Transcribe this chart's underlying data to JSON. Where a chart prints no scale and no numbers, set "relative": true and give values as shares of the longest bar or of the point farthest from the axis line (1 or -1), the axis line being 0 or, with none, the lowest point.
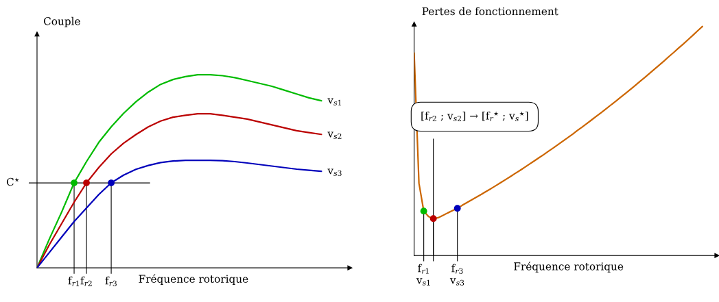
{
  "chart_data": [
    {
      "type": "line",
      "relative": true,
      "ylabel": "Couple",
      "xlabel": "Fréquence rotorique",
      "categories": [
        null,
        null,
        null,
        "f$_{r1}$",
        "f$_{r2}$",
        null,
        "f$_{r3}$",
        null,
        null,
        null,
        null,
        null,
        null,
        null,
        null,
        null,
        null,
        null,
        null,
        null,
        null,
        null,
        null,
        null
      ],
      "series": [
        {
          "name": "v$_{s1}$",
          "color": "#00bb00",
          "values": [
            0,
            0.15,
            0.29,
            0.44,
            0.55,
            0.65,
            0.73,
            0.8,
            0.86,
            0.91,
            0.95,
            0.975,
            0.99,
            1.0,
            1.0,
            0.995,
            0.985,
            0.97,
            0.955,
            0.94,
            0.92,
            0.9,
            0.88,
            0.865
          ]
        },
        {
          "name": "v$_{s2}$",
          "color": "#bb0000",
          "values": [
            0,
            0.12,
            0.23,
            0.34,
            0.44,
            0.52,
            0.59,
            0.645,
            0.69,
            0.73,
            0.76,
            0.78,
            0.79,
            0.798,
            0.798,
            0.79,
            0.78,
            0.77,
            0.755,
            0.74,
            0.725,
            0.71,
            0.7,
            0.691
          ]
        },
        {
          "name": "v$_{s3}$",
          "color": "#0000bb",
          "values": [
            0,
            0.08,
            0.16,
            0.24,
            0.31,
            0.38,
            0.44,
            0.48,
            0.51,
            0.53,
            0.545,
            0.553,
            0.557,
            0.557,
            0.557,
            0.555,
            0.55,
            0.543,
            0.535,
            0.527,
            0.519,
            0.511,
            0.505,
            0.5
          ]
        },
        {
          "type": "scatter",
          "color": "#00bb00",
          "values": [
            null,
            null,
            null,
            0.44,
            null,
            null,
            null,
            null,
            null,
            null,
            null,
            null,
            null,
            null,
            null,
            null,
            null,
            null,
            null,
            null,
            null,
            null,
            null,
            null
          ]
        },
        {
          "type": "scatter",
          "color": "#bb0000",
          "values": [
            null,
            null,
            null,
            null,
            0.44,
            null,
            null,
            null,
            null,
            null,
            null,
            null,
            null,
            null,
            null,
            null,
            null,
            null,
            null,
            null,
            null,
            null,
            null,
            null
          ]
        },
        {
          "type": "scatter",
          "color": "#0000bb",
          "values": [
            null,
            null,
            null,
            null,
            null,
            null,
            0.44,
            null,
            null,
            null,
            null,
            null,
            null,
            null,
            null,
            null,
            null,
            null,
            null,
            null,
            null,
            null,
            null,
            null
          ]
        }
      ],
      "ref_lines": [
        {
          "axis": "y",
          "value": 0.44,
          "label": "C$^{⋆}$",
          "color": "#000000"
        }
      ]
    },
    {
      "type": "line",
      "relative": true,
      "ylabel": "Pertes de fonctionnement",
      "xlabel": "Fréquence rotorique",
      "categories": [
        null,
        null,
        "f$_{r1}$\nv$_{s1}$",
        null,
        null,
        null,
        null,
        null,
        null,
        "f$_{r3}$\nv$_{s3}$",
        null,
        null,
        null,
        null,
        null,
        null,
        null,
        null,
        null,
        null,
        null,
        null,
        null,
        null,
        null,
        null,
        null,
        null,
        null,
        null,
        null,
        null,
        null,
        null,
        null,
        null,
        null,
        null,
        null,
        null,
        null,
        null,
        null,
        null,
        null,
        null,
        null,
        null,
        null,
        null,
        null,
        null,
        null,
        null,
        null,
        null,
        null,
        null,
        null,
        null,
        null
      ],
      "series": [
        {
          "color": "#cc6600",
          "values": [
            0.884,
            0.316,
            0.194,
            0.17,
            0.161,
            0.165,
            0.175,
            0.186,
            0.196,
            0.206,
            0.219,
            0.231,
            0.243,
            0.255,
            0.267,
            0.28,
            0.292,
            0.305,
            0.318,
            0.331,
            0.344,
            0.358,
            0.371,
            0.385,
            0.399,
            0.413,
            0.427,
            0.441,
            0.456,
            0.47,
            0.485,
            0.5,
            0.515,
            0.53,
            0.546,
            0.561,
            0.577,
            0.593,
            0.609,
            0.625,
            0.641,
            0.658,
            0.674,
            0.691,
            0.708,
            0.725,
            0.742,
            0.76,
            0.777,
            0.795,
            0.813,
            0.831,
            0.849,
            0.868,
            0.886,
            0.905,
            0.923,
            0.942,
            0.961,
            0.981,
            1.0
          ]
        },
        {
          "type": "scatter",
          "color": "#00bb00",
          "values": [
            null,
            null,
            0.194,
            null,
            null,
            null,
            null,
            null,
            null,
            null,
            null,
            null,
            null,
            null,
            null,
            null,
            null,
            null,
            null,
            null,
            null,
            null,
            null,
            null,
            null,
            null,
            null,
            null,
            null,
            null,
            null,
            null,
            null,
            null,
            null,
            null,
            null,
            null,
            null,
            null,
            null,
            null,
            null,
            null,
            null,
            null,
            null,
            null,
            null,
            null,
            null,
            null,
            null,
            null,
            null,
            null,
            null,
            null,
            null,
            null,
            null
          ]
        },
        {
          "type": "scatter",
          "color": "#bb0000",
          "values": [
            null,
            null,
            null,
            null,
            0.161,
            null,
            null,
            null,
            null,
            null,
            null,
            null,
            null,
            null,
            null,
            null,
            null,
            null,
            null,
            null,
            null,
            null,
            null,
            null,
            null,
            null,
            null,
            null,
            null,
            null,
            null,
            null,
            null,
            null,
            null,
            null,
            null,
            null,
            null,
            null,
            null,
            null,
            null,
            null,
            null,
            null,
            null,
            null,
            null,
            null,
            null,
            null,
            null,
            null,
            null,
            null,
            null,
            null,
            null,
            null,
            null
          ]
        },
        {
          "type": "scatter",
          "color": "#0000bb",
          "values": [
            null,
            null,
            null,
            null,
            null,
            null,
            null,
            null,
            null,
            0.206,
            null,
            null,
            null,
            null,
            null,
            null,
            null,
            null,
            null,
            null,
            null,
            null,
            null,
            null,
            null,
            null,
            null,
            null,
            null,
            null,
            null,
            null,
            null,
            null,
            null,
            null,
            null,
            null,
            null,
            null,
            null,
            null,
            null,
            null,
            null,
            null,
            null,
            null,
            null,
            null,
            null,
            null,
            null,
            null,
            null,
            null,
            null,
            null,
            null,
            null,
            null
          ]
        }
      ],
      "annotations": [
        "[f$_{r2}$ ; v$_{s2}$] → [f$_{r}$$^{⋆}$ ; v$_{s}$$^{⋆}$]"
      ]
    }
  ]
}
